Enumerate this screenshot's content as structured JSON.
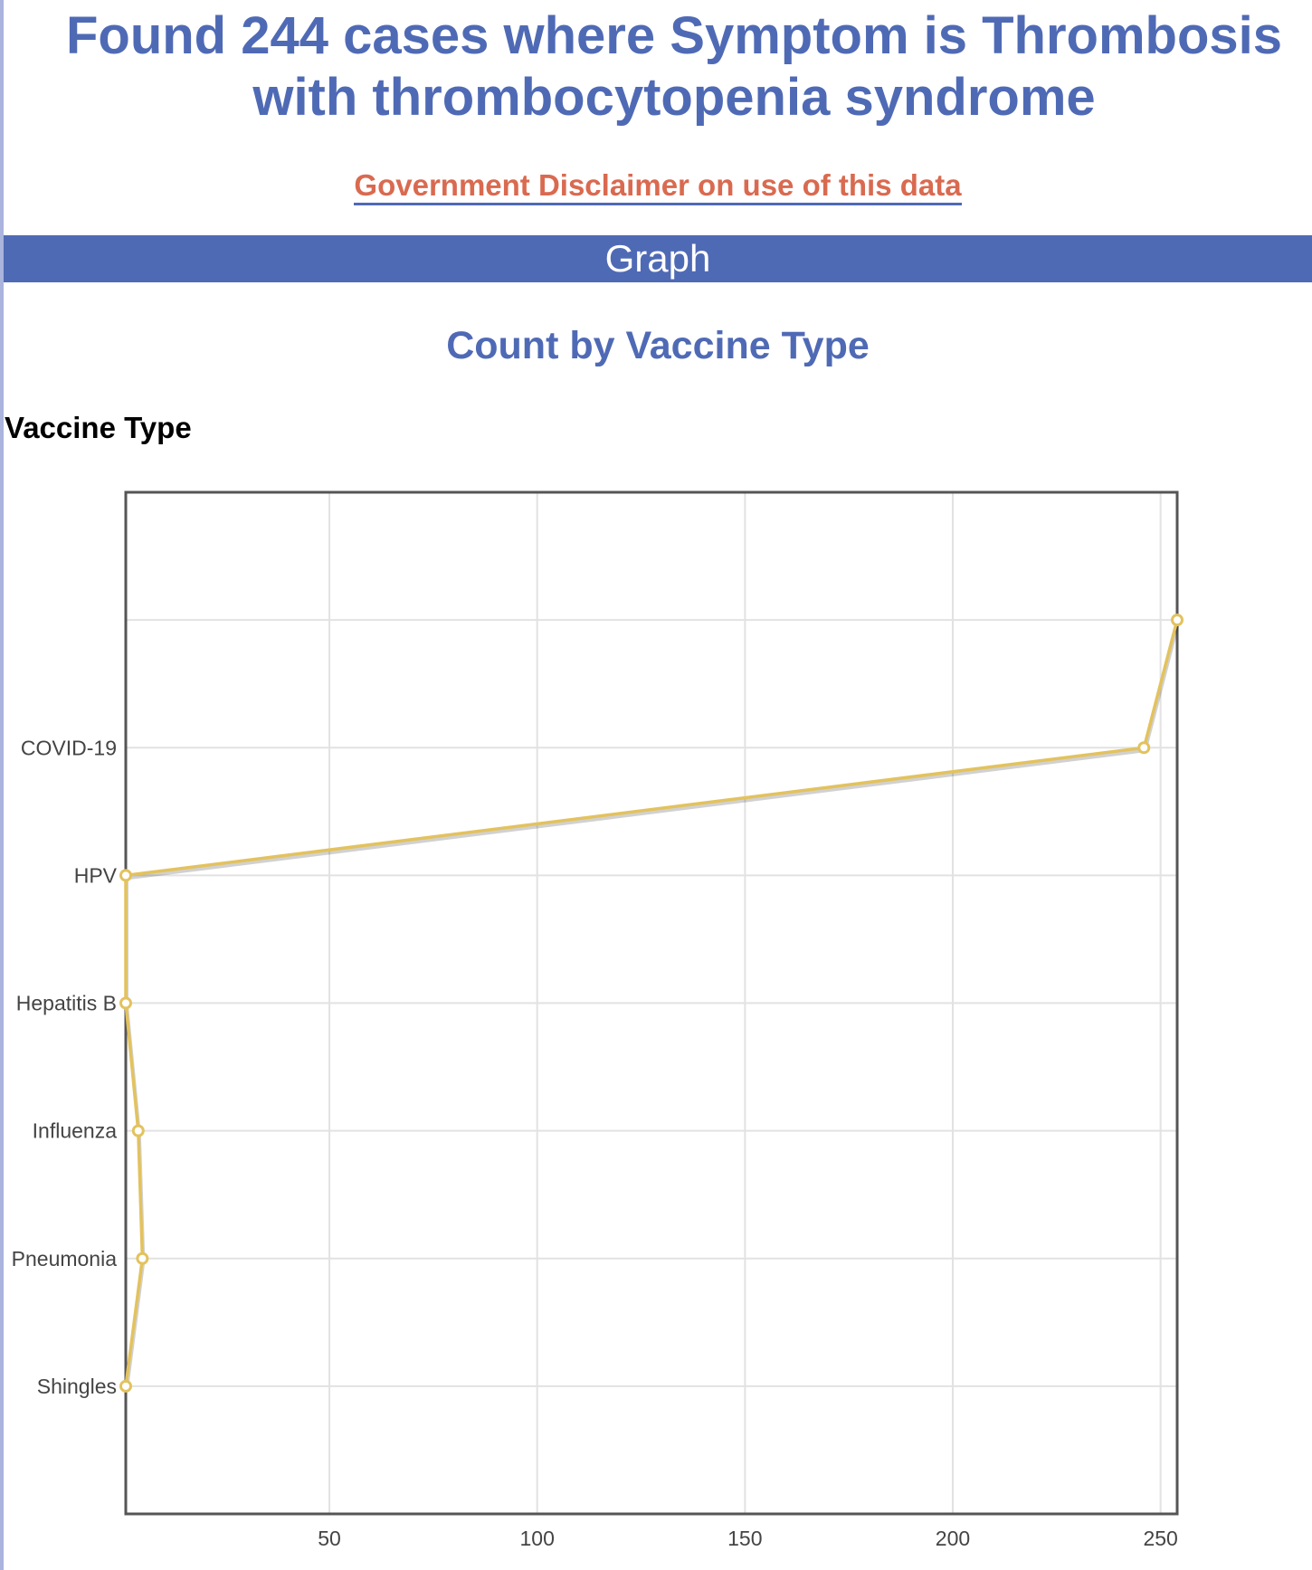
{
  "header": {
    "title": "Found 244 cases where Symptom is Thrombosis with thrombocytopenia syndrome",
    "disclaimer_link": "Government Disclaimer on use of this data"
  },
  "section": {
    "label": "Graph"
  },
  "colors": {
    "accent": "#4f6ab5",
    "link": "#d96a50",
    "series": "#e3c25e"
  },
  "chart_data": {
    "type": "line",
    "title": "Count by Vaccine Type",
    "ylabel": "Vaccine Type",
    "xlabel": "",
    "orientation": "horizontal",
    "categories": [
      "",
      "COVID-19",
      "HPV",
      "Hepatitis B",
      "Influenza",
      "Pneumonia",
      "Shingles"
    ],
    "values": [
      254,
      246,
      1,
      1,
      4,
      5,
      1
    ],
    "xlim": [
      1,
      254
    ],
    "xticks": [
      50,
      100,
      150,
      200,
      250
    ],
    "grid": true,
    "legend": "none"
  }
}
